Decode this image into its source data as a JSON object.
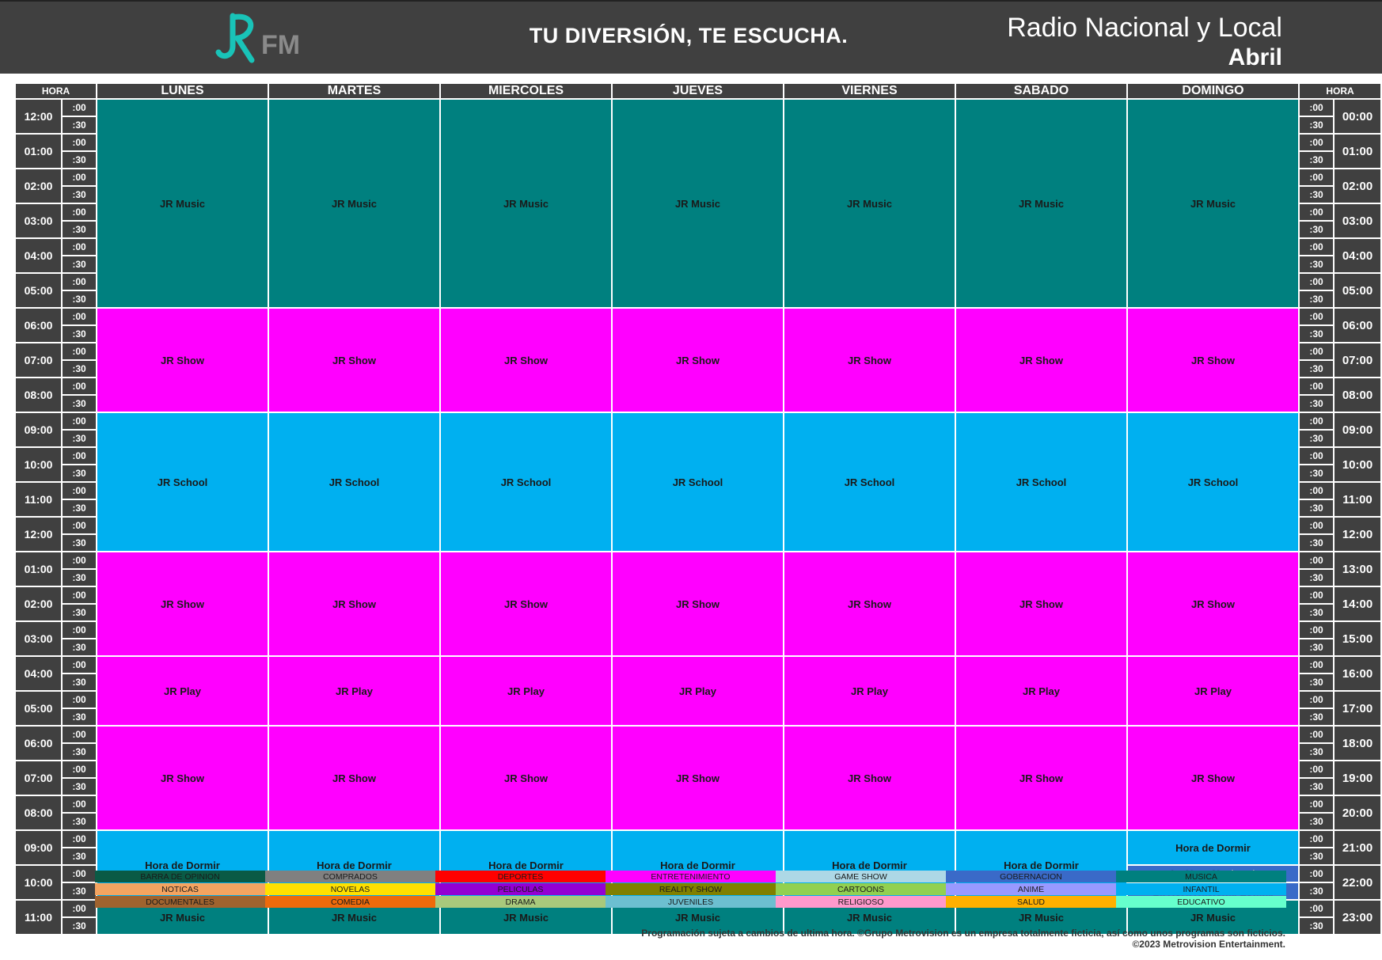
{
  "header": {
    "logo_text": "FM",
    "tagline": "TU DIVERSIÓN, TE ESCUCHA.",
    "title": "Radio Nacional y Local",
    "month": "Abril"
  },
  "table": {
    "hour_label": "HORA",
    "days": [
      "LUNES",
      "MARTES",
      "MIERCOLES",
      "JUEVES",
      "VIERNES",
      "SABADO",
      "DOMINGO"
    ],
    "half_labels": [
      ":00",
      ":30"
    ],
    "left_hours": [
      "12:00",
      "01:00",
      "02:00",
      "03:00",
      "04:00",
      "05:00",
      "06:00",
      "07:00",
      "08:00",
      "09:00",
      "10:00",
      "11:00",
      "12:00",
      "01:00",
      "02:00",
      "03:00",
      "04:00",
      "05:00",
      "06:00",
      "07:00",
      "08:00",
      "09:00",
      "10:00",
      "11:00"
    ],
    "right_hours": [
      "00:00",
      "01:00",
      "02:00",
      "03:00",
      "04:00",
      "05:00",
      "06:00",
      "07:00",
      "08:00",
      "09:00",
      "10:00",
      "11:00",
      "12:00",
      "13:00",
      "14:00",
      "15:00",
      "16:00",
      "17:00",
      "18:00",
      "19:00",
      "20:00",
      "21:00",
      "22:00",
      "23:00"
    ],
    "blocks": [
      {
        "label": "JR Music",
        "category": "musica",
        "start_hour": 0,
        "hours": 6
      },
      {
        "label": "JR Show",
        "category": "ent",
        "start_hour": 6,
        "hours": 3
      },
      {
        "label": "JR School",
        "category": "inf",
        "start_hour": 9,
        "hours": 4
      },
      {
        "label": "JR Show",
        "category": "ent",
        "start_hour": 13,
        "hours": 3
      },
      {
        "label": "JR Play",
        "category": "ent",
        "start_hour": 16,
        "hours": 2
      },
      {
        "label": "JR Show",
        "category": "ent",
        "start_hour": 18,
        "hours": 3
      },
      {
        "label": "Hora de Dormir",
        "category": "inf",
        "start_hour": 21,
        "hours": 2
      },
      {
        "label": "JR Music",
        "category": "musica",
        "start_hour": 23,
        "hours": 1
      }
    ],
    "sunday_overrides": [
      {
        "label": "Hora de Dormir",
        "category": "inf",
        "start_hour": 21,
        "hours": 1
      },
      {
        "label": "La Hora Nacional",
        "category": "gob",
        "start_hour": 22,
        "hours": 0.5
      },
      {
        "label": "La Hora Nacional Estatal",
        "category": "gob",
        "start_hour": 22.5,
        "hours": 0.5
      }
    ]
  },
  "colors": {
    "musica": "#00807f",
    "ent": "#ff00ff",
    "inf": "#00b0f0",
    "gob": "#3a6ac8"
  },
  "legend": [
    {
      "label": "BARRA DE OPINION",
      "color": "#0a5a45"
    },
    {
      "label": "COMPRADOS",
      "color": "#808080"
    },
    {
      "label": "DEPORTES",
      "color": "#ff0000"
    },
    {
      "label": "ENTRETENIMIENTO",
      "color": "#ff00ff"
    },
    {
      "label": "GAME SHOW",
      "color": "#add8e6"
    },
    {
      "label": "GOBERNACION",
      "color": "#3a6ac8"
    },
    {
      "label": "MUSICA",
      "color": "#00807f"
    },
    {
      "label": "NOTICAS",
      "color": "#f4a460"
    },
    {
      "label": "NOVELAS",
      "color": "#ffe000"
    },
    {
      "label": "PELICULAS",
      "color": "#9400d3"
    },
    {
      "label": "REALITY SHOW",
      "color": "#808000"
    },
    {
      "label": "CARTOONS",
      "color": "#92d050"
    },
    {
      "label": "ANIME",
      "color": "#9999ff"
    },
    {
      "label": "INFANTIL",
      "color": "#00b0f0"
    },
    {
      "label": "DOCUMENTALES",
      "color": "#a0632e"
    },
    {
      "label": "COMEDIA",
      "color": "#ee6a0b"
    },
    {
      "label": "DRAMA",
      "color": "#a9c97c"
    },
    {
      "label": "JUVENILES",
      "color": "#6cbfd0"
    },
    {
      "label": "RELIGIOSO",
      "color": "#ff99cc"
    },
    {
      "label": "SALUD",
      "color": "#ffb000"
    },
    {
      "label": "EDUCATIVO",
      "color": "#66ffcc"
    }
  ],
  "footer": {
    "line1": "Programación sujeta a cambios de ultima hora. ©Grupo Metrovision es un empresa totalmente ficticia, así como unos programas son ficticios.",
    "line2": "©2023 Metrovision Entertainment."
  }
}
